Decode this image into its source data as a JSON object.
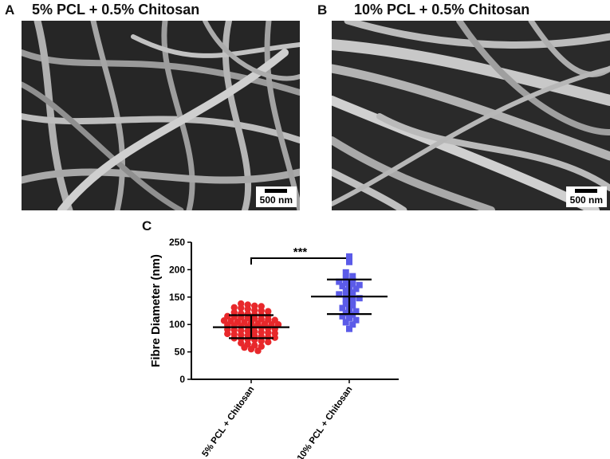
{
  "panels": [
    {
      "letter": "A",
      "title": "5% PCL + 0.5% Chitosan",
      "scale_label": "500 nm"
    },
    {
      "letter": "B",
      "title": "10% PCL + 0.5% Chitosan",
      "scale_label": "500 nm"
    },
    {
      "letter": "C"
    }
  ],
  "chart_data": {
    "type": "scatter",
    "title": "",
    "ylabel": "Fibre Diameter (nm)",
    "ylim": [
      0,
      250
    ],
    "yticks": [
      0,
      50,
      100,
      150,
      200,
      250
    ],
    "categories": [
      "5% PCL + Chitosan",
      "10% PCL + Chitosan"
    ],
    "significance": "***",
    "series": [
      {
        "color": "#e8282b",
        "marker": "circle",
        "mean": 95,
        "sd_low": 75,
        "sd_high": 117,
        "values": [
          138,
          136,
          134,
          133,
          131,
          130,
          128,
          126,
          125,
          124,
          122,
          120,
          119,
          118,
          117,
          116,
          115,
          114,
          113,
          112,
          111,
          110,
          109,
          108,
          107,
          106,
          105,
          104,
          103,
          102,
          101,
          100,
          100,
          99,
          98,
          97,
          96,
          95,
          94,
          93,
          92,
          91,
          90,
          89,
          88,
          87,
          86,
          85,
          84,
          83,
          82,
          81,
          80,
          79,
          78,
          77,
          76,
          75,
          74,
          73,
          72,
          70,
          68,
          66,
          64,
          62,
          60,
          58,
          55,
          52
        ]
      },
      {
        "color": "#5b5be8",
        "marker": "square",
        "mean": 151,
        "sd_low": 119,
        "sd_high": 182,
        "values": [
          224,
          214,
          195,
          188,
          184,
          180,
          178,
          176,
          174,
          172,
          170,
          168,
          165,
          162,
          158,
          155,
          152,
          150,
          148,
          145,
          142,
          138,
          135,
          130,
          127,
          124,
          121,
          118,
          115,
          112,
          108,
          104,
          100,
          92
        ]
      }
    ]
  }
}
